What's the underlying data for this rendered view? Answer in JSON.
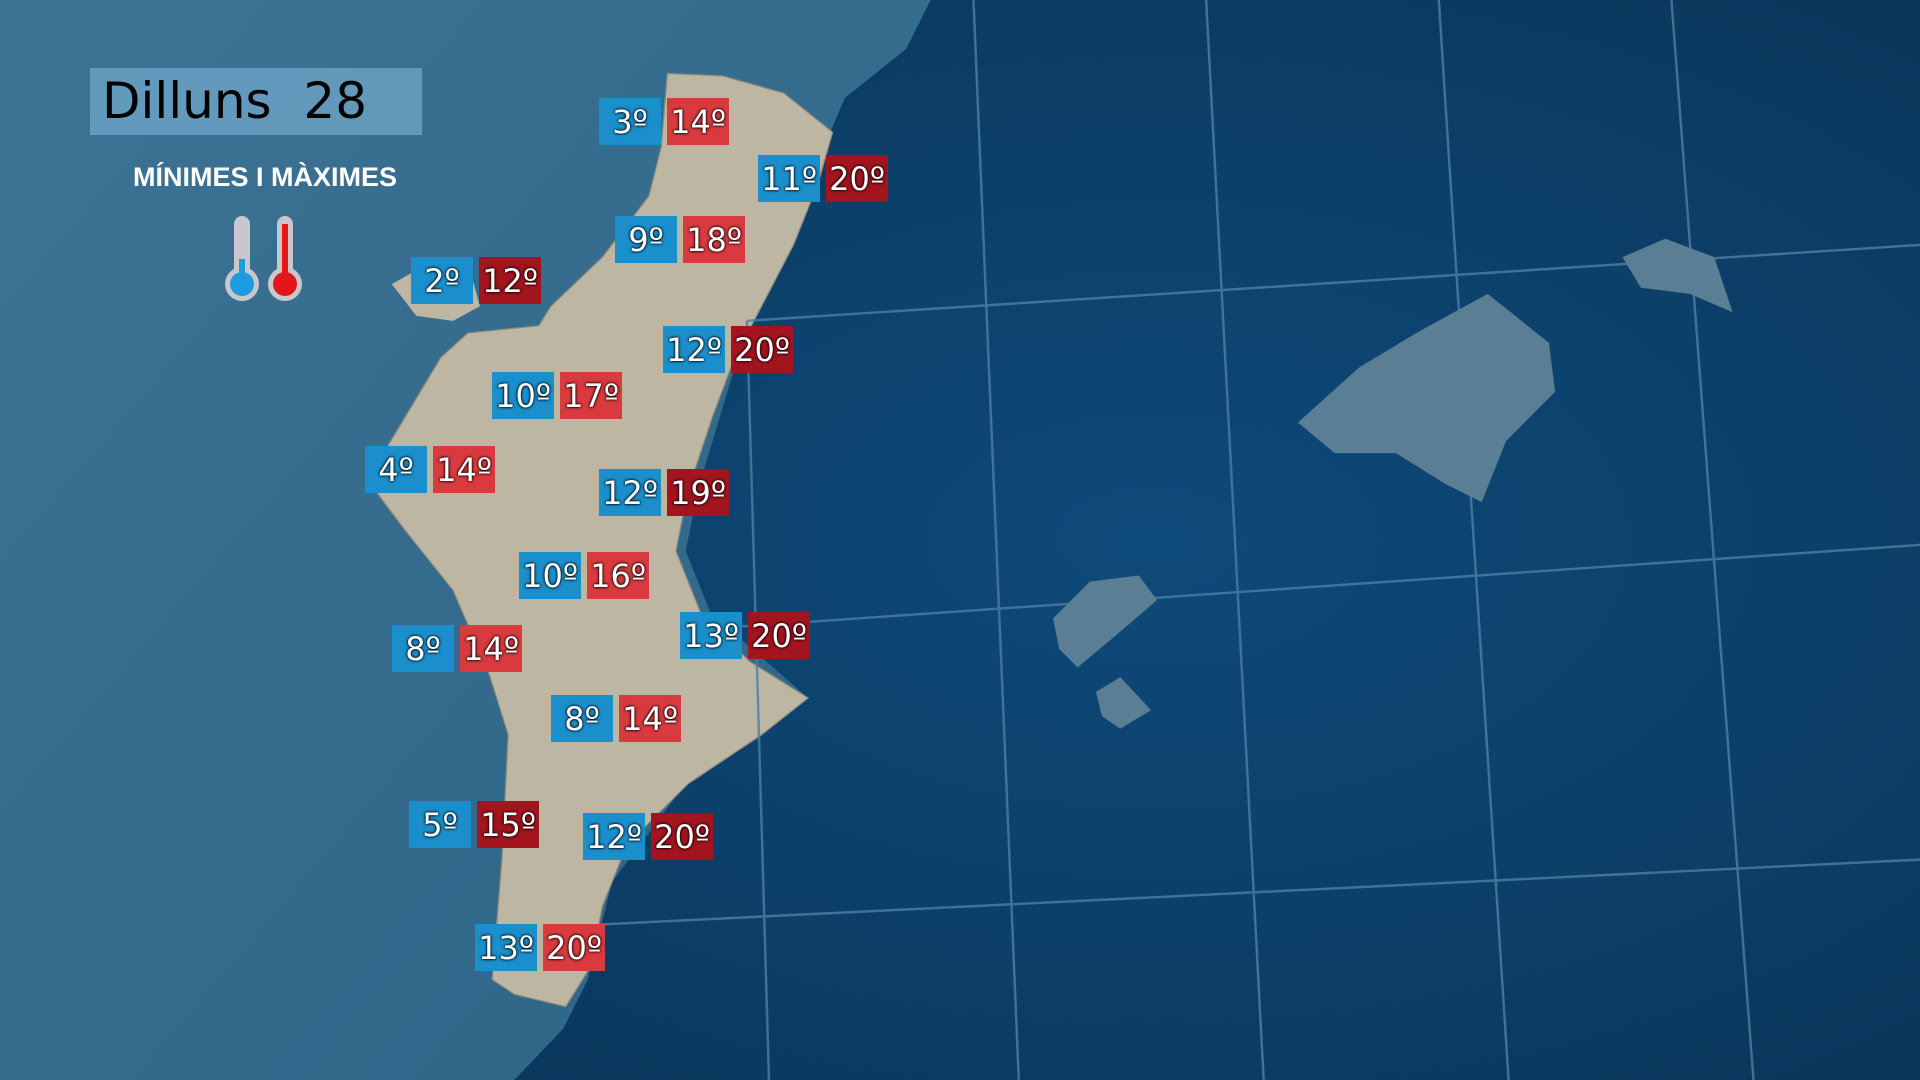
{
  "header": {
    "title": "Dilluns  28",
    "subtitle": "MÍNIMES I MÀXIMES"
  },
  "legend": {
    "min_icon": "thermometer-cold-icon",
    "max_icon": "thermometer-hot-icon",
    "min_color": "#1e9be0",
    "max_color": "#e3161c"
  },
  "colors": {
    "min_box": "#1a8fcc",
    "max_box_light": "#d93a3e",
    "max_box_dark": "#a2141e",
    "sea": "#0c3d66",
    "land": "#bdb6a4"
  },
  "stations": [
    {
      "min": "3º",
      "max": "14º",
      "tone": "light"
    },
    {
      "min": "11º",
      "max": "20º",
      "tone": "dark"
    },
    {
      "min": "9º",
      "max": "18º",
      "tone": "light"
    },
    {
      "min": "2º",
      "max": "12º",
      "tone": "dark"
    },
    {
      "min": "12º",
      "max": "20º",
      "tone": "dark"
    },
    {
      "min": "10º",
      "max": "17º",
      "tone": "light"
    },
    {
      "min": "4º",
      "max": "14º",
      "tone": "light"
    },
    {
      "min": "12º",
      "max": "19º",
      "tone": "dark"
    },
    {
      "min": "10º",
      "max": "16º",
      "tone": "light"
    },
    {
      "min": "13º",
      "max": "20º",
      "tone": "dark"
    },
    {
      "min": "8º",
      "max": "14º",
      "tone": "light"
    },
    {
      "min": "8º",
      "max": "14º",
      "tone": "light"
    },
    {
      "min": "5º",
      "max": "15º",
      "tone": "dark"
    },
    {
      "min": "12º",
      "max": "20º",
      "tone": "dark"
    },
    {
      "min": "13º",
      "max": "20º",
      "tone": "light"
    }
  ]
}
